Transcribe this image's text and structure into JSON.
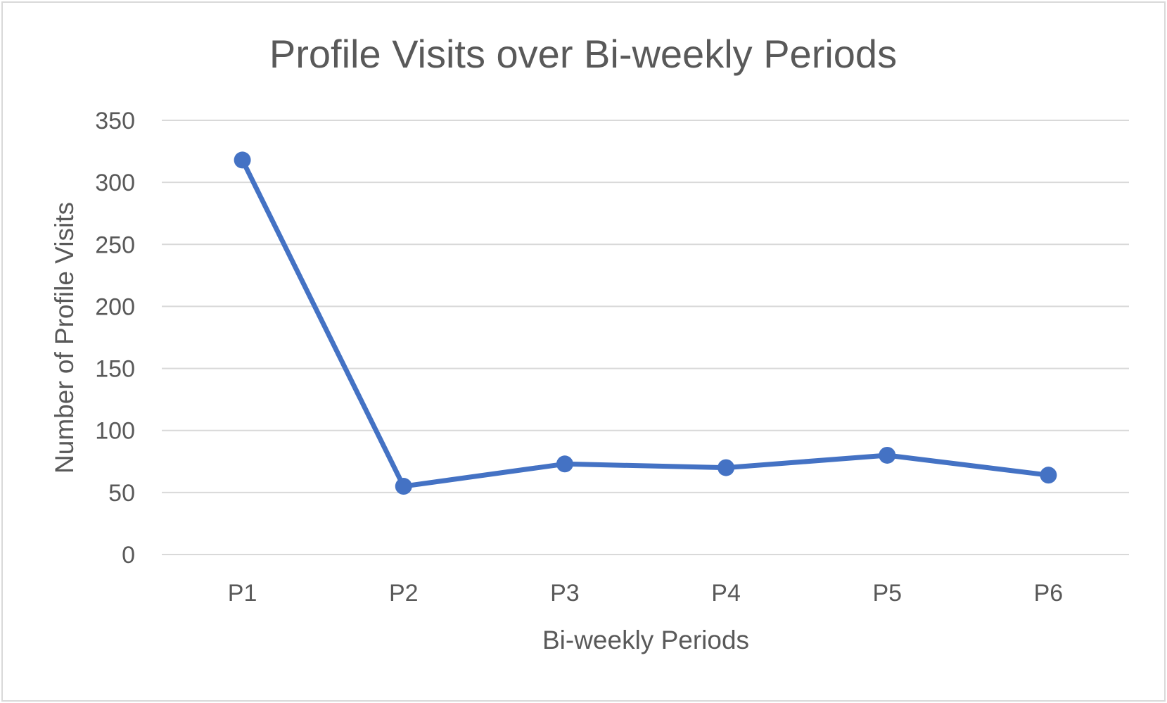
{
  "chart_data": {
    "type": "line",
    "title": "Profile Visits over Bi-weekly Periods",
    "xlabel": "Bi-weekly Periods",
    "ylabel": "Number of Profile Visits",
    "categories": [
      "P1",
      "P2",
      "P3",
      "P4",
      "P5",
      "P6"
    ],
    "series": [
      {
        "values": [
          318,
          55,
          73,
          70,
          80,
          64
        ],
        "color": "#4472c4"
      }
    ],
    "ylim": [
      0,
      350
    ],
    "yticks": [
      0,
      50,
      100,
      150,
      200,
      250,
      300,
      350
    ],
    "grid": true,
    "legend": "none",
    "markers": true
  }
}
